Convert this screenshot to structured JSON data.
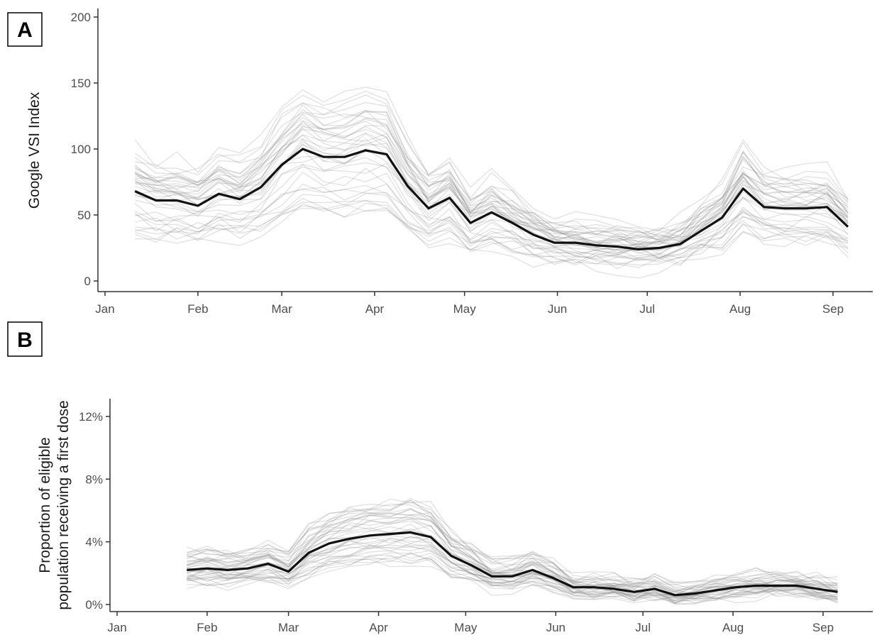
{
  "chart_data": [
    {
      "panel": "A",
      "type": "line",
      "ylabel": "Google VSI Index",
      "xlabel": "",
      "ylim": [
        0,
        200
      ],
      "y_ticks": [
        0,
        50,
        100,
        150,
        200
      ],
      "y_tick_labels": [
        "0",
        "50",
        "100",
        "150",
        "200"
      ],
      "x_ticks": [
        "Jan",
        "Feb",
        "Mar",
        "Apr",
        "May",
        "Jun",
        "Jul",
        "Aug",
        "Sep"
      ],
      "grid": false,
      "background_series_count": 40,
      "background_note": "many faint grey lines, one per unit",
      "series": [
        {
          "x": [
            "Jan 11",
            "Jan 18",
            "Jan 25",
            "Feb 1",
            "Feb 8",
            "Feb 15",
            "Feb 22",
            "Mar 1",
            "Mar 8",
            "Mar 15",
            "Mar 22",
            "Mar 29",
            "Apr 5",
            "Apr 12",
            "Apr 19",
            "Apr 26",
            "May 3",
            "May 10",
            "May 17",
            "May 24",
            "May 31",
            "Jun 7",
            "Jun 14",
            "Jun 21",
            "Jun 28",
            "Jul 5",
            "Jul 12",
            "Jul 19",
            "Jul 26",
            "Aug 2",
            "Aug 9",
            "Aug 16",
            "Aug 23",
            "Aug 30",
            "Sep 6"
          ],
          "values": [
            68,
            61,
            61,
            57,
            66,
            62,
            71,
            88,
            100,
            94,
            94,
            99,
            96,
            72,
            55,
            63,
            44,
            52,
            44,
            35,
            29,
            29,
            27,
            26,
            24,
            25,
            28,
            38,
            48,
            70,
            56,
            55,
            55,
            56,
            41
          ]
        }
      ]
    },
    {
      "panel": "B",
      "type": "line",
      "ylabel": "Proportion of eligible population receiving a first dose",
      "ylabel_lines": [
        "Proportion of eligible",
        "population receiving a first dose"
      ],
      "xlabel": "",
      "ylim": [
        0,
        12
      ],
      "y_ticks": [
        0,
        4,
        8,
        12
      ],
      "y_tick_labels": [
        "0%",
        "4%",
        "8%",
        "12%"
      ],
      "x_ticks": [
        "Jan",
        "Feb",
        "Mar",
        "Apr",
        "May",
        "Jun",
        "Jul",
        "Aug",
        "Sep"
      ],
      "grid": false,
      "background_series_count": 40,
      "background_note": "many faint grey lines, one per unit",
      "series": [
        {
          "x": [
            "Jan 25",
            "Feb 1",
            "Feb 8",
            "Feb 15",
            "Feb 22",
            "Mar 1",
            "Mar 8",
            "Mar 15",
            "Mar 22",
            "Mar 29",
            "Apr 5",
            "Apr 12",
            "Apr 19",
            "Apr 26",
            "May 3",
            "May 10",
            "May 17",
            "May 24",
            "May 31",
            "Jun 7",
            "Jun 14",
            "Jun 21",
            "Jun 28",
            "Jul 5",
            "Jul 12",
            "Jul 19",
            "Jul 26",
            "Aug 2",
            "Aug 9",
            "Aug 16",
            "Aug 23",
            "Aug 30",
            "Sep 6"
          ],
          "values": [
            2.2,
            2.3,
            2.2,
            2.3,
            2.6,
            2.1,
            3.3,
            3.9,
            4.2,
            4.4,
            4.5,
            4.6,
            4.3,
            3.1,
            2.5,
            1.8,
            1.8,
            2.2,
            1.7,
            1.1,
            1.1,
            1.0,
            0.8,
            1.0,
            0.6,
            0.7,
            0.9,
            1.1,
            1.2,
            1.2,
            1.2,
            1.0,
            0.8
          ]
        }
      ]
    }
  ],
  "panels": {
    "a": {
      "tag": "A",
      "ylabel": "Google VSI Index"
    },
    "b": {
      "tag": "B",
      "ylabel_line1": "Proportion of eligible",
      "ylabel_line2": "population receiving a first dose"
    }
  }
}
